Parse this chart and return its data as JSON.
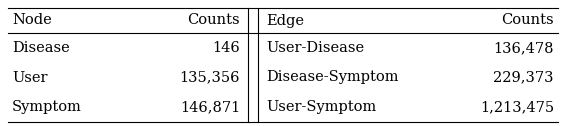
{
  "node_headers": [
    "Node",
    "Counts"
  ],
  "node_rows": [
    [
      "Disease",
      "146"
    ],
    [
      "User",
      "135,356"
    ],
    [
      "Symptom",
      "146,871"
    ]
  ],
  "edge_headers": [
    "Edge",
    "Counts"
  ],
  "edge_rows": [
    [
      "User-Disease",
      "136,478"
    ],
    [
      "Disease-Symptom",
      "229,373"
    ],
    [
      "User-Symptom",
      "1,213,475"
    ]
  ],
  "background_color": "#ffffff",
  "text_color": "#000000",
  "font_size": 10.5,
  "line_color": "#000000",
  "line_width": 0.8
}
